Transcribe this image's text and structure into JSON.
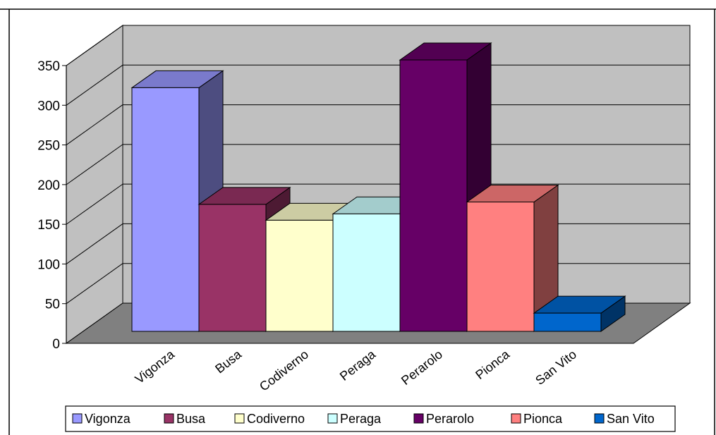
{
  "chart_data": {
    "type": "bar",
    "title": "",
    "xlabel": "",
    "ylabel": "",
    "categories": [
      "Vigonza",
      "Busa",
      "Codiverno",
      "Peraga",
      "Perarolo",
      "Pionca",
      "San Vito"
    ],
    "values": [
      307,
      160,
      140,
      148,
      342,
      163,
      23
    ],
    "ylim": [
      0,
      350
    ],
    "yticks": [
      "0",
      "50",
      "100",
      "150",
      "200",
      "250",
      "300",
      "350"
    ],
    "grid": true,
    "three_d": true,
    "legend_position": "bottom",
    "colors": {
      "Vigonza": "#9999ff",
      "Busa": "#993366",
      "Codiverno": "#ffffcc",
      "Peraga": "#ccffff",
      "Perarolo": "#660066",
      "Pionca": "#ff8080",
      "San Vito": "#0066cc"
    },
    "wall_color": "#c0c0c0",
    "floor_color": "#808080"
  }
}
